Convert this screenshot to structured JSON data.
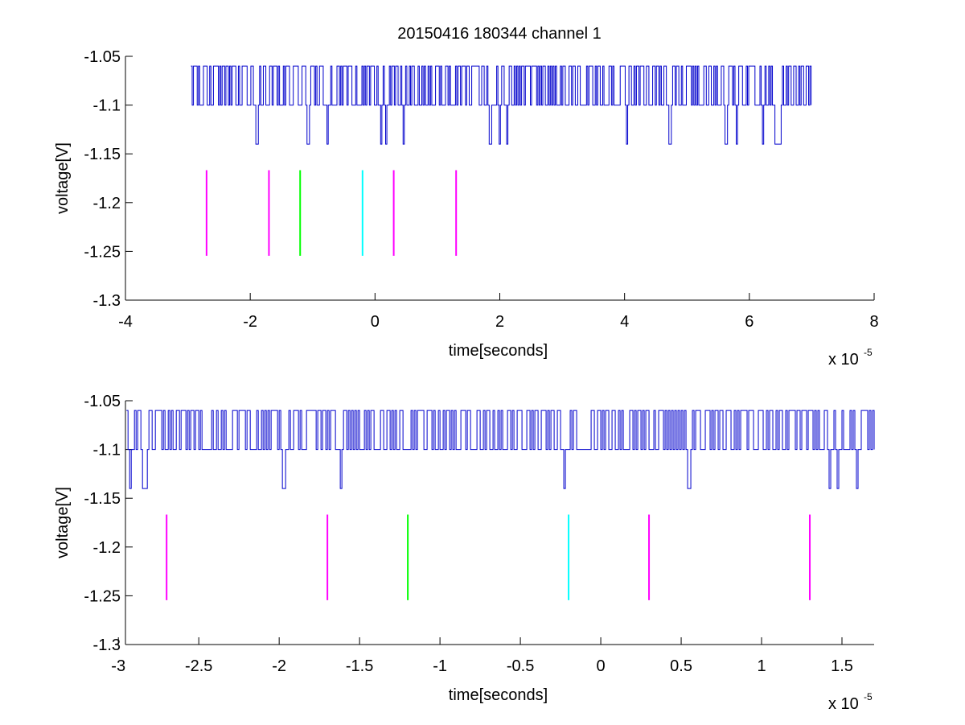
{
  "figure": {
    "title": "20150416 180344 channel 1"
  },
  "chart_data": [
    {
      "type": "line",
      "title": "20150416 180344 channel 1",
      "xlabel": "time[seconds]",
      "ylabel": "voltage[V]",
      "x_exponent_label": "x 10",
      "x_exponent": "-5",
      "xlim": [
        -4e-05,
        8e-05
      ],
      "ylim": [
        -1.3,
        -1.05
      ],
      "xticks": [
        -4e-05,
        -2e-05,
        0,
        2e-05,
        4e-05,
        6e-05,
        8e-05
      ],
      "xtick_labels": [
        "-4",
        "-2",
        "0",
        "2",
        "4",
        "6",
        "8"
      ],
      "yticks": [
        -1.3,
        -1.25,
        -1.2,
        -1.15,
        -1.1,
        -1.05
      ],
      "ytick_labels": [
        "-1.3",
        "-1.25",
        "-1.2",
        "-1.15",
        "-1.1",
        "-1.05"
      ],
      "grid": false,
      "series": [
        {
          "color": "#0000cc",
          "signal": {
            "x_start": -2.95e-05,
            "x_end": 7e-05,
            "levels": [
              -1.06,
              -1.1,
              -1.14
            ],
            "sample_step": 2e-07
          }
        }
      ],
      "markers": [
        {
          "x": -2.7e-05,
          "y0": -1.2545,
          "y1": -1.1667,
          "color": "#ff00ff"
        },
        {
          "x": -1.7e-05,
          "y0": -1.2545,
          "y1": -1.1667,
          "color": "#ff00ff"
        },
        {
          "x": -1.2e-05,
          "y0": -1.2545,
          "y1": -1.1667,
          "color": "#00ff00"
        },
        {
          "x": -2e-06,
          "y0": -1.2545,
          "y1": -1.1667,
          "color": "#00ffff"
        },
        {
          "x": 3e-06,
          "y0": -1.2545,
          "y1": -1.1667,
          "color": "#ff00ff"
        },
        {
          "x": 1.3e-05,
          "y0": -1.2545,
          "y1": -1.1667,
          "color": "#ff00ff"
        }
      ]
    },
    {
      "type": "line",
      "xlabel": "time[seconds]",
      "ylabel": "voltage[V]",
      "x_exponent_label": "x 10",
      "x_exponent": "-5",
      "xlim": [
        -2.956e-05,
        1.7e-05
      ],
      "ylim": [
        -1.3,
        -1.05
      ],
      "xticks": [
        -3e-05,
        -2.5e-05,
        -2e-05,
        -1.5e-05,
        -1e-05,
        -5e-06,
        0,
        5e-06,
        1e-05,
        1.5e-05
      ],
      "xtick_labels": [
        "-3",
        "-2.5",
        "-2",
        "-1.5",
        "-1",
        "-0.5",
        "0",
        "0.5",
        "1",
        "1.5"
      ],
      "yticks": [
        -1.3,
        -1.25,
        -1.2,
        -1.15,
        -1.1,
        -1.05
      ],
      "ytick_labels": [
        "-1.3",
        "-1.25",
        "-1.2",
        "-1.15",
        "-1.1",
        "-1.05"
      ],
      "grid": false,
      "series": [
        {
          "color": "#0000cc",
          "signal": {
            "x_start": -2.95e-05,
            "x_end": 1.7e-05,
            "levels": [
              -1.06,
              -1.1,
              -1.14
            ],
            "sample_step": 1e-07
          }
        }
      ],
      "markers": [
        {
          "x": -2.7e-05,
          "y0": -1.2545,
          "y1": -1.1667,
          "color": "#ff00ff"
        },
        {
          "x": -1.7e-05,
          "y0": -1.2545,
          "y1": -1.1667,
          "color": "#ff00ff"
        },
        {
          "x": -1.2e-05,
          "y0": -1.2545,
          "y1": -1.1667,
          "color": "#00ff00"
        },
        {
          "x": -2e-06,
          "y0": -1.2545,
          "y1": -1.1667,
          "color": "#00ffff"
        },
        {
          "x": 3e-06,
          "y0": -1.2545,
          "y1": -1.1667,
          "color": "#ff00ff"
        },
        {
          "x": 1.3e-05,
          "y0": -1.2545,
          "y1": -1.1667,
          "color": "#ff00ff"
        }
      ]
    }
  ]
}
